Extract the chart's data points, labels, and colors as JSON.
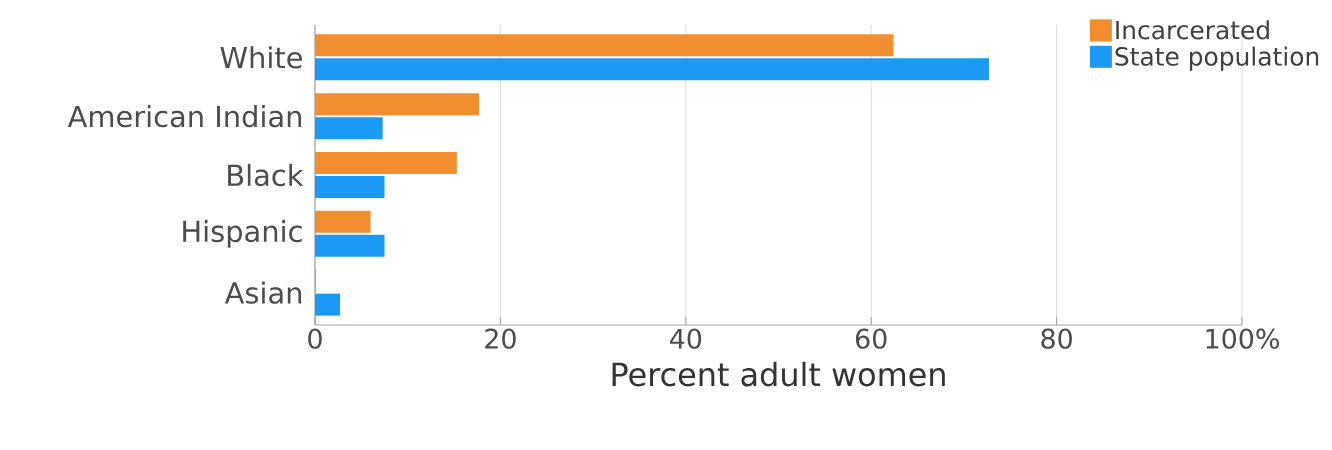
{
  "chart_data": {
    "type": "bar",
    "orientation": "horizontal",
    "xlabel": "Percent adult women",
    "categories": [
      "White",
      "American Indian",
      "Black",
      "Hispanic",
      "Asian"
    ],
    "series": [
      {
        "name": "Incarcerated",
        "color": "#f28e30",
        "values": [
          62.4,
          17.7,
          15.3,
          6.0,
          0.1
        ]
      },
      {
        "name": "State population",
        "color": "#1a9af5",
        "values": [
          72.7,
          7.3,
          7.5,
          7.5,
          2.7
        ]
      }
    ],
    "xlim": [
      0,
      100
    ],
    "xticks": [
      0,
      20,
      40,
      60,
      {
        "value": 80,
        "label": "80"
      },
      {
        "value": 100,
        "label": "100%"
      }
    ],
    "grid": "x",
    "legend": "top right"
  }
}
